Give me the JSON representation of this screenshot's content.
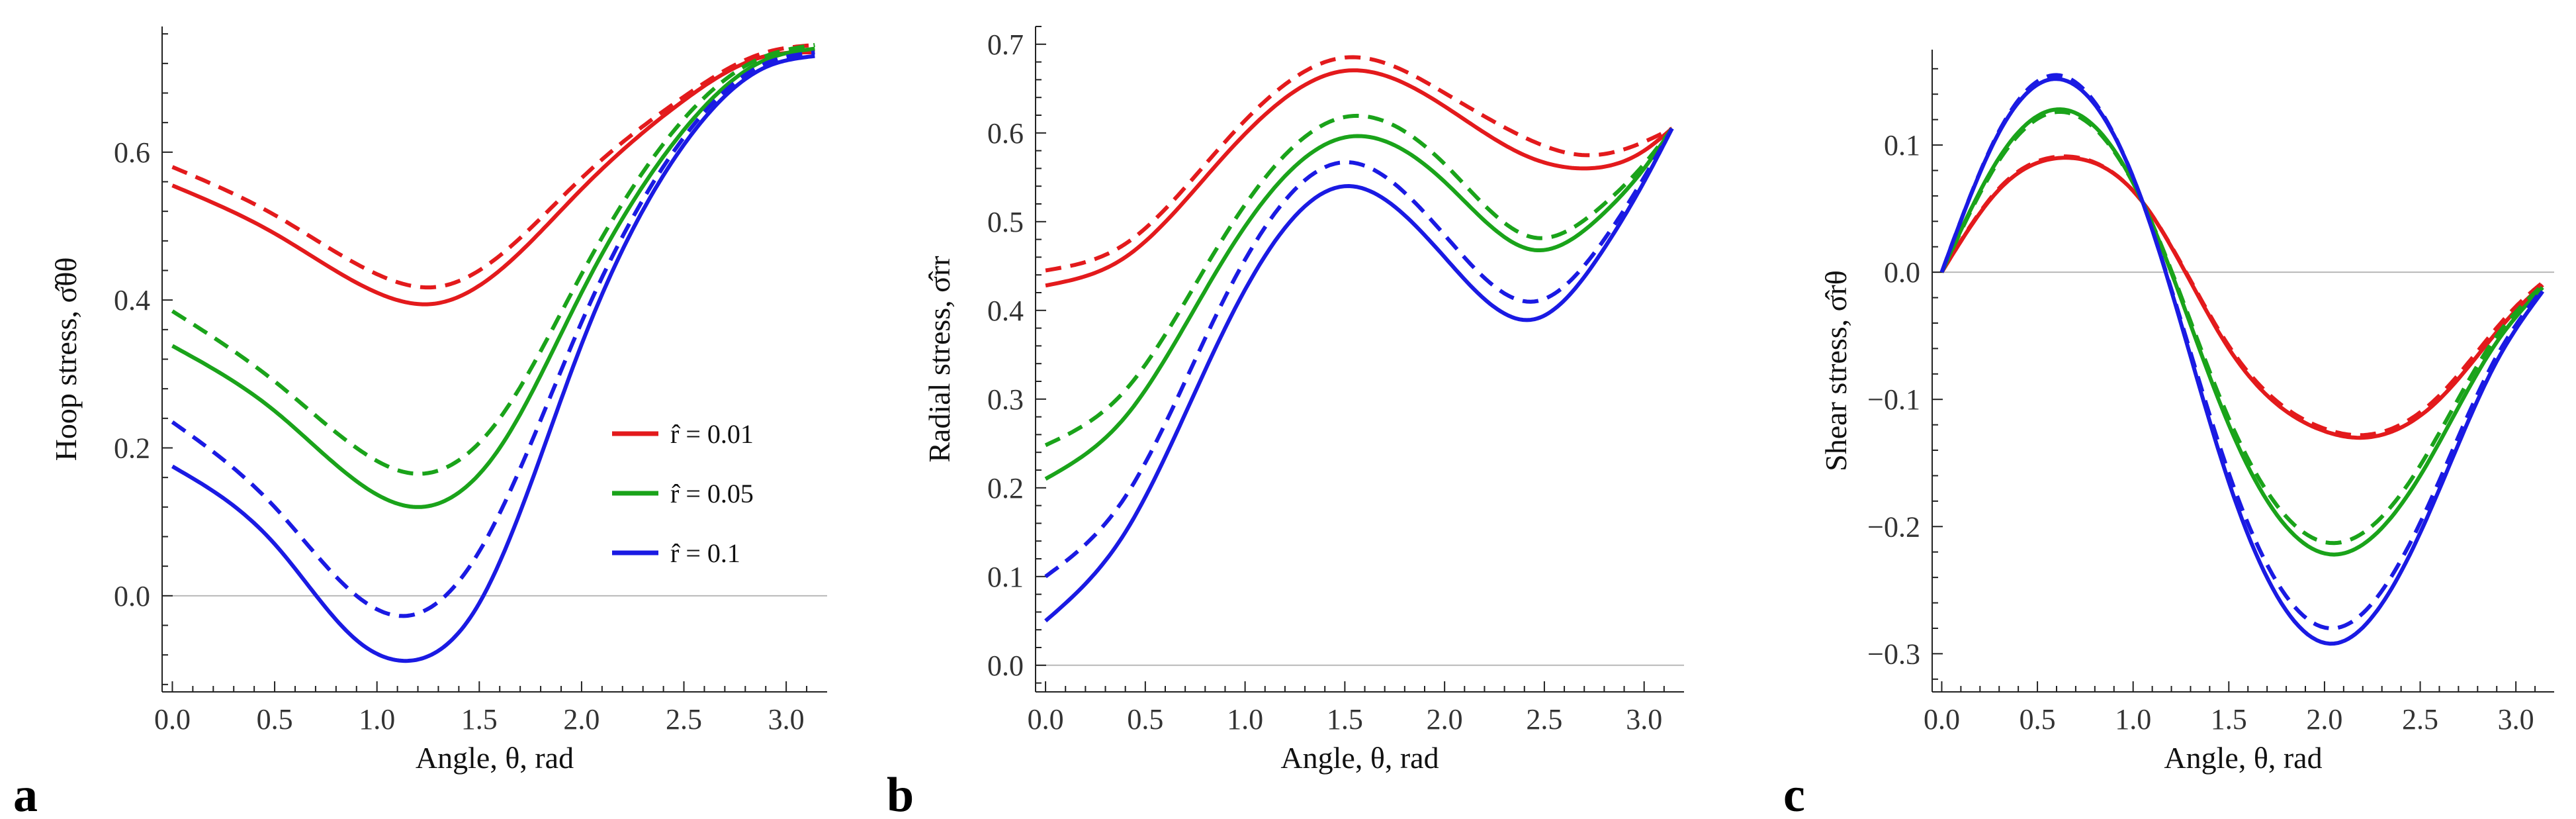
{
  "chart_data": [
    {
      "type": "line",
      "panel_label": "a",
      "xlabel": "Angle,  θ, rad",
      "ylabel": "Hoop stress, σ̂θθ",
      "xlim": [
        -0.05,
        3.2
      ],
      "ylim": [
        -0.13,
        0.77
      ],
      "xticks": [
        "0.0",
        "0.5",
        "1.0",
        "1.5",
        "2.0",
        "2.5",
        "3.0"
      ],
      "yticks": [
        "0.0",
        "0.2",
        "0.4",
        "0.6"
      ],
      "legend": {
        "placement": "center-right",
        "entries": [
          {
            "label": "r̂ = 0.01",
            "color": "#e31a1c"
          },
          {
            "label": "r̂ = 0.05",
            "color": "#1aa31a"
          },
          {
            "label": "r̂ = 0.1",
            "color": "#1a1ae3"
          }
        ]
      },
      "series": [
        {
          "name": "r=0.01 solid",
          "color": "#e31a1c",
          "dash": false,
          "x": [
            0.0,
            0.5,
            1.0,
            1.28,
            1.6,
            2.0,
            2.5,
            2.9,
            3.14
          ],
          "y": [
            0.555,
            0.49,
            0.41,
            0.395,
            0.44,
            0.55,
            0.67,
            0.73,
            0.735
          ]
        },
        {
          "name": "r=0.01 dashed",
          "color": "#e31a1c",
          "dash": true,
          "x": [
            0.0,
            0.5,
            1.0,
            1.3,
            1.6,
            2.0,
            2.5,
            2.9,
            3.14
          ],
          "y": [
            0.58,
            0.515,
            0.435,
            0.418,
            0.46,
            0.565,
            0.675,
            0.735,
            0.745
          ]
        },
        {
          "name": "r=0.05 solid",
          "color": "#1aa31a",
          "dash": false,
          "x": [
            0.0,
            0.5,
            0.9,
            1.2,
            1.6,
            2.0,
            2.5,
            2.9,
            3.14
          ],
          "y": [
            0.338,
            0.25,
            0.155,
            0.12,
            0.2,
            0.41,
            0.63,
            0.725,
            0.74
          ]
        },
        {
          "name": "r=0.05 dashed",
          "color": "#1aa31a",
          "dash": true,
          "x": [
            0.0,
            0.5,
            0.9,
            1.2,
            1.6,
            2.0,
            2.5,
            2.9,
            3.14
          ],
          "y": [
            0.385,
            0.29,
            0.2,
            0.165,
            0.24,
            0.435,
            0.645,
            0.73,
            0.745
          ]
        },
        {
          "name": "r=0.1 solid",
          "color": "#1a1ae3",
          "dash": false,
          "x": [
            0.0,
            0.5,
            0.9,
            1.15,
            1.5,
            2.0,
            2.5,
            2.9,
            3.14
          ],
          "y": [
            0.175,
            0.07,
            -0.06,
            -0.088,
            -0.01,
            0.34,
            0.61,
            0.715,
            0.73
          ]
        },
        {
          "name": "r=0.1 dashed",
          "color": "#1a1ae3",
          "dash": true,
          "x": [
            0.0,
            0.5,
            0.9,
            1.15,
            1.5,
            2.0,
            2.5,
            2.9,
            3.14
          ],
          "y": [
            0.235,
            0.12,
            0.0,
            -0.027,
            0.06,
            0.37,
            0.62,
            0.72,
            0.735
          ]
        }
      ]
    },
    {
      "type": "line",
      "panel_label": "b",
      "xlabel": "Angle,  θ, rad",
      "ylabel": "Radial stress, σ̂rr",
      "xlim": [
        -0.05,
        3.2
      ],
      "ylim": [
        -0.03,
        0.72
      ],
      "xticks": [
        "0.0",
        "0.5",
        "1.0",
        "1.5",
        "2.0",
        "2.5",
        "3.0"
      ],
      "yticks": [
        "0.0",
        "0.1",
        "0.2",
        "0.3",
        "0.4",
        "0.5",
        "0.6",
        "0.7"
      ],
      "series": [
        {
          "name": "r=0.01 solid",
          "color": "#e31a1c",
          "dash": false,
          "x": [
            0.0,
            0.4,
            0.9,
            1.5,
            2.0,
            2.4,
            2.7,
            3.0,
            3.14
          ],
          "y": [
            0.428,
            0.46,
            0.575,
            0.67,
            0.63,
            0.575,
            0.56,
            0.58,
            0.605
          ]
        },
        {
          "name": "r=0.01 dashed",
          "color": "#e31a1c",
          "dash": true,
          "x": [
            0.0,
            0.4,
            0.9,
            1.5,
            2.0,
            2.4,
            2.7,
            3.0,
            3.14
          ],
          "y": [
            0.445,
            0.475,
            0.59,
            0.685,
            0.645,
            0.595,
            0.575,
            0.59,
            0.605
          ]
        },
        {
          "name": "r=0.05 solid",
          "color": "#1aa31a",
          "dash": false,
          "x": [
            0.0,
            0.4,
            0.9,
            1.5,
            2.0,
            2.45,
            2.8,
            3.0,
            3.14
          ],
          "y": [
            0.21,
            0.28,
            0.46,
            0.595,
            0.545,
            0.468,
            0.51,
            0.56,
            0.605
          ]
        },
        {
          "name": "r=0.05 dashed",
          "color": "#1aa31a",
          "dash": true,
          "x": [
            0.0,
            0.4,
            0.9,
            1.5,
            2.0,
            2.45,
            2.8,
            3.0,
            3.14
          ],
          "y": [
            0.248,
            0.31,
            0.485,
            0.618,
            0.565,
            0.482,
            0.52,
            0.565,
            0.605
          ]
        },
        {
          "name": "r=0.1 solid",
          "color": "#1a1ae3",
          "dash": false,
          "x": [
            0.0,
            0.4,
            0.9,
            1.5,
            2.0,
            2.45,
            2.8,
            3.0,
            3.14
          ],
          "y": [
            0.05,
            0.15,
            0.38,
            0.54,
            0.46,
            0.39,
            0.47,
            0.545,
            0.605
          ]
        },
        {
          "name": "r=0.1 dashed",
          "color": "#1a1ae3",
          "dash": true,
          "x": [
            0.0,
            0.4,
            0.9,
            1.5,
            2.0,
            2.45,
            2.8,
            3.0,
            3.14
          ],
          "y": [
            0.1,
            0.19,
            0.415,
            0.567,
            0.485,
            0.41,
            0.48,
            0.55,
            0.605
          ]
        }
      ]
    },
    {
      "type": "line",
      "panel_label": "c",
      "xlabel": "Angle,  θ, rad",
      "ylabel": "Shear stress, σ̂rθ",
      "xlim": [
        -0.05,
        3.2
      ],
      "ylim": [
        -0.33,
        0.175
      ],
      "xticks": [
        "0.0",
        "0.5",
        "1.0",
        "1.5",
        "2.0",
        "2.5",
        "3.0"
      ],
      "yticks": [
        "−0.3",
        "−0.2",
        "−0.1",
        "0.0",
        "0.1"
      ],
      "series": [
        {
          "name": "r=0.01 solid",
          "color": "#e31a1c",
          "dash": false,
          "x": [
            0.0,
            0.3,
            0.65,
            1.05,
            1.5,
            2.0,
            2.15,
            2.6,
            3.0,
            3.14
          ],
          "y": [
            0.0,
            0.065,
            0.09,
            0.055,
            -0.06,
            -0.125,
            -0.13,
            -0.1,
            -0.03,
            -0.01
          ]
        },
        {
          "name": "r=0.01 dashed",
          "color": "#e31a1c",
          "dash": true,
          "x": [
            0.0,
            0.3,
            0.65,
            1.05,
            1.5,
            2.0,
            2.15,
            2.6,
            3.0,
            3.14
          ],
          "y": [
            0.0,
            0.066,
            0.091,
            0.055,
            -0.058,
            -0.123,
            -0.128,
            -0.097,
            -0.027,
            -0.008
          ]
        },
        {
          "name": "r=0.05 solid",
          "color": "#1aa31a",
          "dash": false,
          "x": [
            0.0,
            0.3,
            0.6,
            1.05,
            1.5,
            2.05,
            2.5,
            2.9,
            3.14
          ],
          "y": [
            0.0,
            0.09,
            0.128,
            0.055,
            -0.12,
            -0.222,
            -0.16,
            -0.055,
            -0.012
          ]
        },
        {
          "name": "r=0.05 dashed",
          "color": "#1aa31a",
          "dash": true,
          "x": [
            0.0,
            0.3,
            0.6,
            1.05,
            1.5,
            2.05,
            2.5,
            2.9,
            3.14
          ],
          "y": [
            0.0,
            0.088,
            0.126,
            0.055,
            -0.115,
            -0.213,
            -0.152,
            -0.05,
            -0.01
          ]
        },
        {
          "name": "r=0.1 solid",
          "color": "#1a1ae3",
          "dash": false,
          "x": [
            0.0,
            0.3,
            0.6,
            1.05,
            1.5,
            2.05,
            2.5,
            2.9,
            3.14
          ],
          "y": [
            0.0,
            0.11,
            0.152,
            0.055,
            -0.165,
            -0.292,
            -0.205,
            -0.07,
            -0.015
          ]
        },
        {
          "name": "r=0.1 dashed",
          "color": "#1a1ae3",
          "dash": true,
          "x": [
            0.0,
            0.3,
            0.6,
            1.05,
            1.5,
            2.05,
            2.5,
            2.9,
            3.14
          ],
          "y": [
            0.0,
            0.111,
            0.155,
            0.055,
            -0.158,
            -0.28,
            -0.197,
            -0.066,
            -0.013
          ]
        }
      ]
    }
  ]
}
